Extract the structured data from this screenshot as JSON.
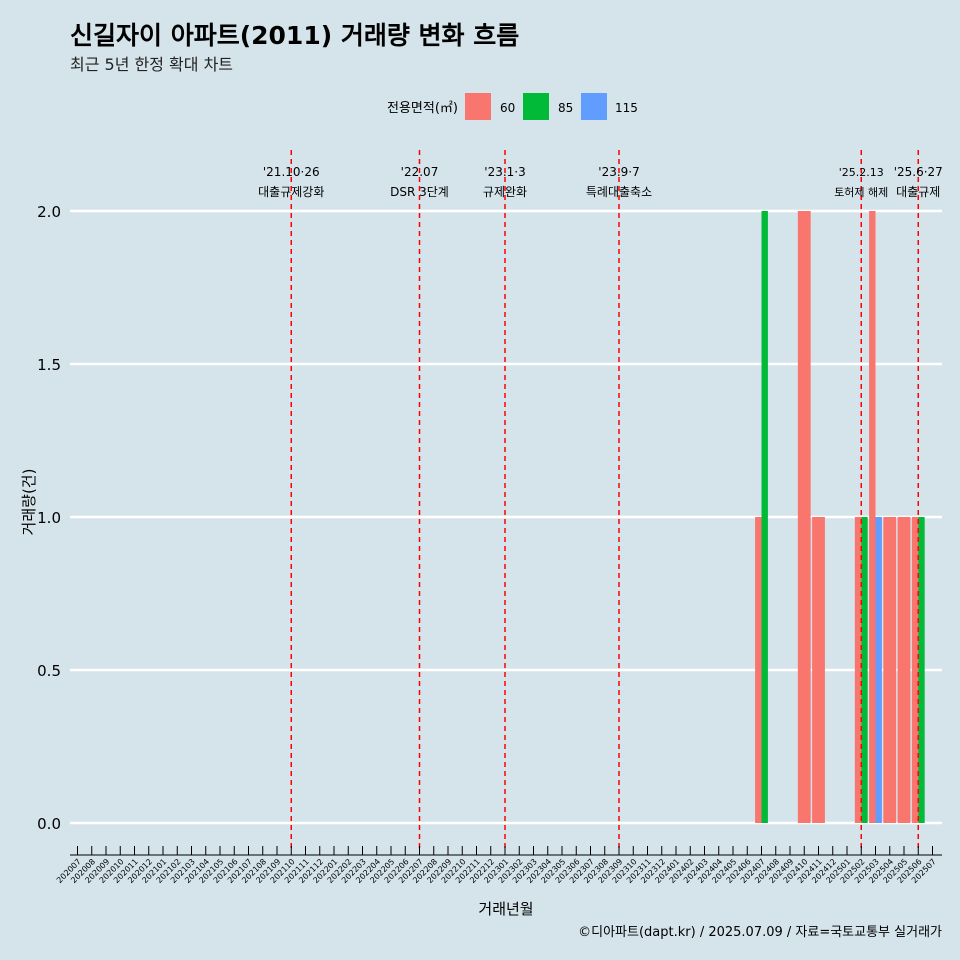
{
  "title": "신길자이 아파트(2011) 거래량 변화 흐름",
  "subtitle": "최근 5년 한정 확대 차트",
  "caption": "©디아파트(dapt.kr) / 2025.07.09 / 자료=국토교통부 실거래가",
  "colors": {
    "background": "#d5e4eb",
    "grid": "#ffffff",
    "event_line": "#ff0000",
    "s60": "#f8766d",
    "s85": "#00ba38",
    "s115": "#619cff"
  },
  "chart_data": {
    "type": "bar",
    "title": "신길자이 아파트(2011) 거래량 변화 흐름",
    "subtitle": "최근 5년 한정 확대 차트",
    "xlabel": "거래년월",
    "ylabel": "거래량(건)",
    "ylim": [
      0,
      2
    ],
    "y_ticks": [
      "0.0",
      "0.5",
      "1.0",
      "1.5",
      "2.0"
    ],
    "y_tick_values": [
      0,
      0.5,
      1.0,
      1.5,
      2.0
    ],
    "legend": {
      "title": "전용면적(㎡)",
      "position": "top",
      "entries": [
        "60",
        "85",
        "115"
      ]
    },
    "categories": [
      "202007",
      "202008",
      "202009",
      "202010",
      "202011",
      "202012",
      "202101",
      "202102",
      "202103",
      "202104",
      "202105",
      "202106",
      "202107",
      "202108",
      "202109",
      "202110",
      "202111",
      "202112",
      "202201",
      "202202",
      "202203",
      "202204",
      "202205",
      "202206",
      "202207",
      "202208",
      "202209",
      "202210",
      "202211",
      "202212",
      "202301",
      "202302",
      "202303",
      "202304",
      "202305",
      "202306",
      "202307",
      "202308",
      "202309",
      "202310",
      "202311",
      "202312",
      "202401",
      "202402",
      "202403",
      "202404",
      "202405",
      "202406",
      "202407",
      "202408",
      "202409",
      "202410",
      "202411",
      "202412",
      "202501",
      "202502",
      "202503",
      "202504",
      "202505",
      "202506",
      "202507"
    ],
    "series": [
      {
        "name": "60",
        "points": [
          [
            "202407",
            1
          ],
          [
            "202410",
            2
          ],
          [
            "202411",
            1
          ],
          [
            "202502",
            1
          ],
          [
            "202503",
            2
          ],
          [
            "202504",
            1
          ],
          [
            "202505",
            1
          ],
          [
            "202506",
            1
          ]
        ]
      },
      {
        "name": "85",
        "points": [
          [
            "202407",
            2
          ],
          [
            "202502",
            1
          ],
          [
            "202506",
            1
          ]
        ]
      },
      {
        "name": "115",
        "points": [
          [
            "202503",
            1
          ]
        ]
      }
    ],
    "events": [
      {
        "date_label": "'21.10·26",
        "text": "대출규제강화",
        "at": "202110"
      },
      {
        "date_label": "'22.07",
        "text": "DSR 3단계",
        "at": "202207"
      },
      {
        "date_label": "'23.1·3",
        "text": "규제완화",
        "at": "202301"
      },
      {
        "date_label": "'23.9·7",
        "text": "특례대출축소",
        "at": "202309"
      },
      {
        "date_label": "'25.2.13",
        "text": "토허제 해제",
        "at": "202502"
      },
      {
        "date_label": "'25.6·27",
        "text": "대출규제",
        "at": "202506"
      }
    ]
  }
}
